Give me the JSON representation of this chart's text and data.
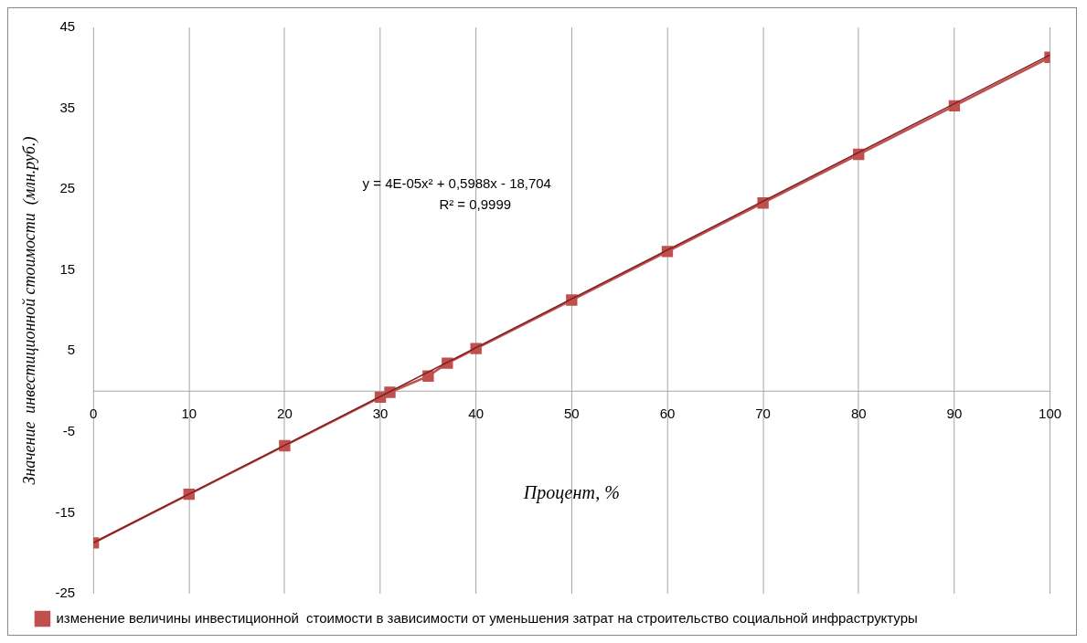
{
  "chart_data": {
    "type": "line",
    "xlabel": "Процент, %",
    "ylabel": "Значение  инвестиционной стоимости  (млн.руб.)",
    "xlim": [
      0,
      100
    ],
    "xticks": [
      0,
      10,
      20,
      30,
      40,
      50,
      60,
      70,
      80,
      90,
      100
    ],
    "ylim": [
      -25,
      45
    ],
    "yticks": [
      -25,
      -15,
      -5,
      5,
      15,
      25,
      35,
      45
    ],
    "grid": "x",
    "legend": "bottom",
    "marker": "square",
    "line_style": "solid",
    "annotations": [
      "y = 4E-05x² + 0,5988x - 18,704",
      "R² = 0,9999"
    ],
    "series": [
      {
        "name": "изменение величины инвестиционной  стоимости в зависимости от уменьшения затрат на строительство социальной инфраструктуры",
        "color": "#c0504d",
        "x": [
          0,
          10,
          20,
          30,
          31,
          35,
          37,
          40,
          50,
          60,
          70,
          80,
          90,
          100
        ],
        "values": [
          -18.7,
          -12.7,
          -6.7,
          -0.7,
          -0.1,
          1.9,
          3.5,
          5.3,
          11.3,
          17.3,
          23.3,
          29.3,
          35.3,
          41.3
        ]
      },
      {
        "type": "line",
        "marker": "none",
        "color": "#7f1f1f",
        "x": [
          0,
          100
        ],
        "values": [
          -18.7,
          41.6
        ]
      }
    ]
  }
}
